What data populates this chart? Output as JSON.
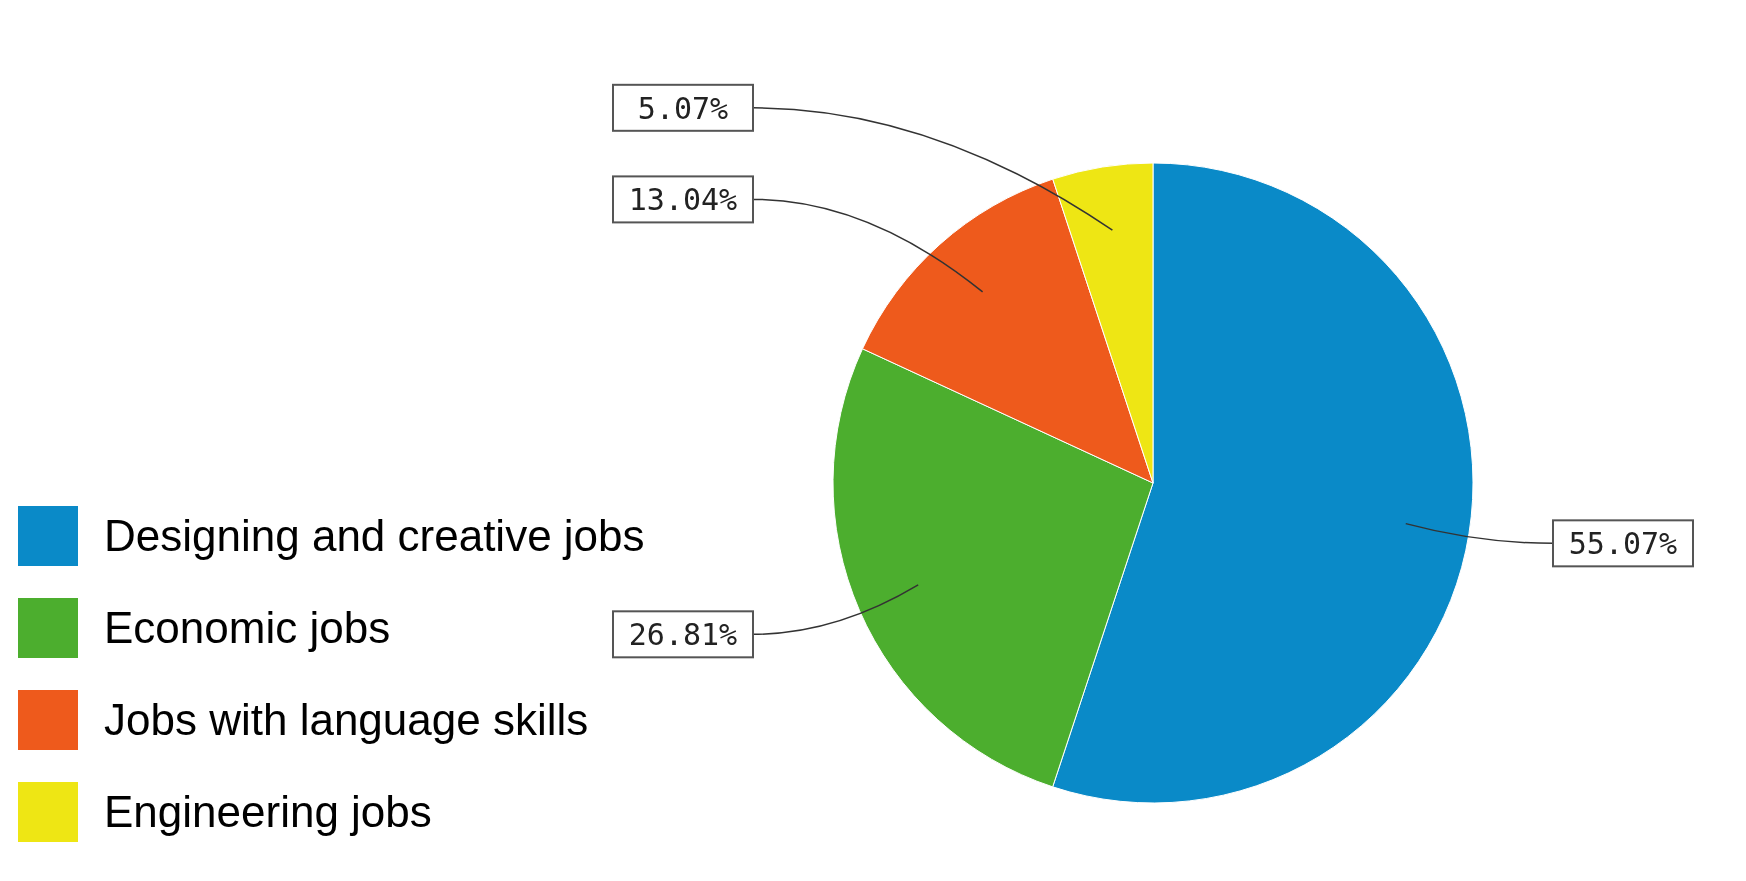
{
  "chart_data": {
    "type": "pie",
    "categories": [
      "Designing and creative jobs",
      "Economic jobs",
      "Jobs with language skills",
      "Engineering jobs"
    ],
    "values": [
      55.07,
      26.81,
      13.04,
      5.07
    ],
    "colors": [
      "#0a8ac8",
      "#4cae2e",
      "#ee5a1c",
      "#eee614"
    ],
    "value_labels": [
      "55.07%",
      "26.81%",
      "13.04%",
      "5.07%"
    ],
    "legend": "bottom left"
  }
}
